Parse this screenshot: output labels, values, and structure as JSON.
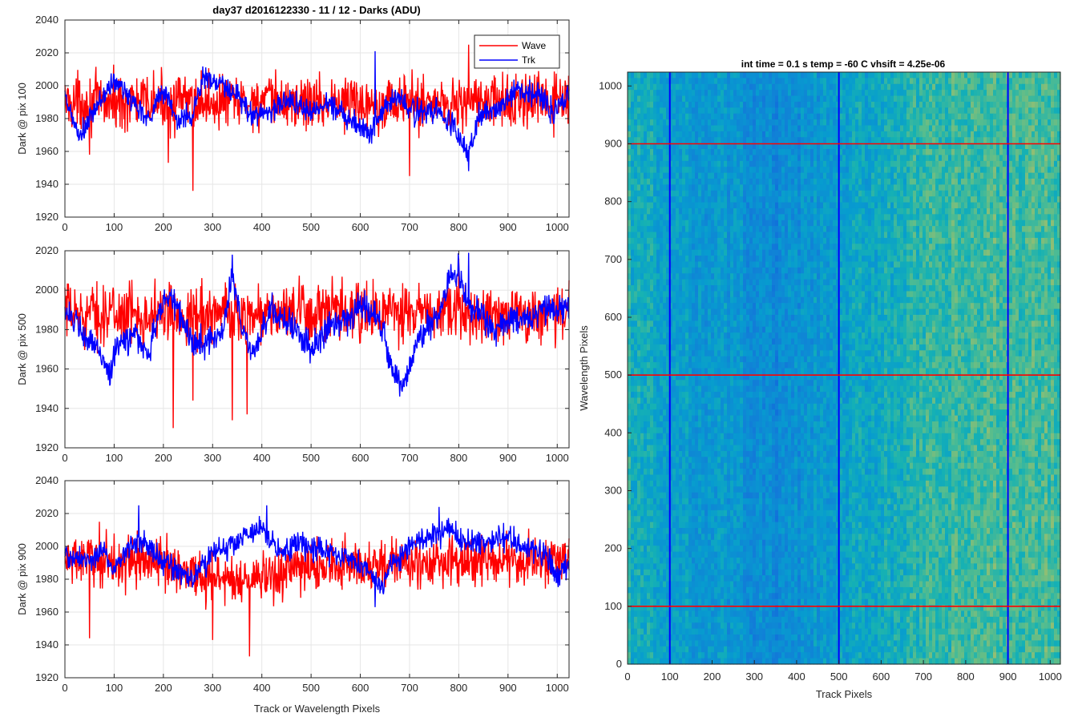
{
  "figure": {
    "suptitle": "day37 d2016122330 - 11 / 12 - Darks (ADU)",
    "right_title": "int time = 0.1 s   temp = -60 C   vhsift = 4.25e-06"
  },
  "colors": {
    "wave": "#ff0000",
    "trk": "#0000ff",
    "grid": "#e6e6e6",
    "axis": "#262626"
  },
  "legend": {
    "items": [
      {
        "label": "Wave",
        "color": "#ff0000"
      },
      {
        "label": "Trk",
        "color": "#0000ff"
      }
    ],
    "location": "top-right"
  },
  "chart_data": [
    {
      "type": "line",
      "ylabel": "Dark @ pix 100",
      "xlabel": "",
      "xlim": [
        0,
        1024
      ],
      "ylim": [
        1920,
        2040
      ],
      "xticks": [
        0,
        100,
        200,
        300,
        400,
        500,
        600,
        700,
        800,
        900,
        1000
      ],
      "yticks": [
        1920,
        1940,
        1960,
        1980,
        2000,
        2020,
        2040
      ],
      "grid": true,
      "series": [
        {
          "name": "Wave",
          "color": "#ff0000",
          "mean": 1990,
          "noise": 11,
          "knots": [
            [
              0,
              1990
            ],
            [
              1024,
              1990
            ]
          ],
          "extremes": [
            [
              260,
              1936
            ],
            [
              210,
              1953
            ],
            [
              700,
              1945
            ],
            [
              820,
              2025
            ],
            [
              50,
              1958
            ]
          ]
        },
        {
          "name": "Trk",
          "color": "#0000ff",
          "mean": 1993,
          "noise": 5,
          "knots": [
            [
              0,
              1992
            ],
            [
              30,
              1968
            ],
            [
              70,
              1990
            ],
            [
              100,
              2003
            ],
            [
              140,
              1990
            ],
            [
              170,
              1980
            ],
            [
              200,
              1998
            ],
            [
              230,
              1978
            ],
            [
              260,
              1983
            ],
            [
              280,
              2005
            ],
            [
              320,
              2000
            ],
            [
              360,
              1990
            ],
            [
              380,
              1982
            ],
            [
              420,
              1985
            ],
            [
              460,
              1992
            ],
            [
              500,
              1983
            ],
            [
              530,
              1990
            ],
            [
              560,
              1985
            ],
            [
              600,
              1975
            ],
            [
              620,
              1970
            ],
            [
              640,
              1986
            ],
            [
              680,
              1993
            ],
            [
              700,
              1985
            ],
            [
              740,
              1983
            ],
            [
              760,
              1985
            ],
            [
              790,
              1975
            ],
            [
              820,
              1958
            ],
            [
              840,
              1980
            ],
            [
              860,
              1985
            ],
            [
              900,
              1990
            ],
            [
              920,
              1998
            ],
            [
              960,
              1995
            ],
            [
              990,
              1985
            ],
            [
              1024,
              1995
            ]
          ],
          "extremes": [
            [
              630,
              2021
            ],
            [
              820,
              1948
            ]
          ]
        }
      ]
    },
    {
      "type": "line",
      "ylabel": "Dark @ pix 500",
      "xlabel": "",
      "xlim": [
        0,
        1024
      ],
      "ylim": [
        1920,
        2020
      ],
      "xticks": [
        0,
        100,
        200,
        300,
        400,
        500,
        600,
        700,
        800,
        900,
        1000
      ],
      "yticks": [
        1920,
        1940,
        1960,
        1980,
        2000,
        2020
      ],
      "grid": true,
      "series": [
        {
          "name": "Wave",
          "color": "#ff0000",
          "mean": 1988,
          "noise": 10,
          "knots": [
            [
              0,
              1988
            ],
            [
              1024,
              1988
            ]
          ],
          "extremes": [
            [
              220,
              1930
            ],
            [
              340,
              1934
            ],
            [
              260,
              1944
            ],
            [
              370,
              1937
            ],
            [
              800,
              2016
            ]
          ]
        },
        {
          "name": "Trk",
          "color": "#0000ff",
          "mean": 1985,
          "noise": 5,
          "knots": [
            [
              0,
              1992
            ],
            [
              40,
              1975
            ],
            [
              70,
              1970
            ],
            [
              90,
              1958
            ],
            [
              110,
              1972
            ],
            [
              140,
              1978
            ],
            [
              170,
              1968
            ],
            [
              200,
              1995
            ],
            [
              210,
              1998
            ],
            [
              230,
              1990
            ],
            [
              260,
              1972
            ],
            [
              300,
              1975
            ],
            [
              320,
              1980
            ],
            [
              340,
              2008
            ],
            [
              360,
              1980
            ],
            [
              380,
              1968
            ],
            [
              420,
              1990
            ],
            [
              450,
              1985
            ],
            [
              480,
              1975
            ],
            [
              500,
              1970
            ],
            [
              530,
              1980
            ],
            [
              560,
              1985
            ],
            [
              600,
              1992
            ],
            [
              640,
              1985
            ],
            [
              660,
              1965
            ],
            [
              680,
              1952
            ],
            [
              700,
              1960
            ],
            [
              720,
              1978
            ],
            [
              760,
              1985
            ],
            [
              780,
              2005
            ],
            [
              800,
              2008
            ],
            [
              820,
              1990
            ],
            [
              850,
              1988
            ],
            [
              870,
              1978
            ],
            [
              900,
              1985
            ],
            [
              940,
              1985
            ],
            [
              980,
              1990
            ],
            [
              1024,
              1990
            ]
          ],
          "extremes": [
            [
              340,
              2018
            ],
            [
              680,
              1946
            ],
            [
              820,
              2019
            ]
          ]
        }
      ]
    },
    {
      "type": "line",
      "ylabel": "Dark @ pix 900",
      "xlabel": "Track or Wavelength Pixels",
      "xlim": [
        0,
        1024
      ],
      "ylim": [
        1920,
        2040
      ],
      "xticks": [
        0,
        100,
        200,
        300,
        400,
        500,
        600,
        700,
        800,
        900,
        1000
      ],
      "yticks": [
        1920,
        1940,
        1960,
        1980,
        2000,
        2020,
        2040
      ],
      "grid": true,
      "series": [
        {
          "name": "Wave",
          "color": "#ff0000",
          "mean": 1990,
          "noise": 10,
          "knots": [
            [
              0,
              1992
            ],
            [
              200,
              1990
            ],
            [
              300,
              1980
            ],
            [
              400,
              1980
            ],
            [
              500,
              1988
            ],
            [
              1024,
              1992
            ]
          ],
          "extremes": [
            [
              50,
              1944
            ],
            [
              375,
              1933
            ],
            [
              300,
              1943
            ],
            [
              70,
              2015
            ]
          ]
        },
        {
          "name": "Trk",
          "color": "#0000ff",
          "mean": 1995,
          "noise": 5,
          "knots": [
            [
              0,
              1995
            ],
            [
              40,
              1990
            ],
            [
              80,
              1998
            ],
            [
              100,
              1985
            ],
            [
              130,
              2000
            ],
            [
              160,
              2005
            ],
            [
              200,
              1990
            ],
            [
              230,
              1985
            ],
            [
              260,
              1980
            ],
            [
              300,
              1995
            ],
            [
              360,
              2005
            ],
            [
              400,
              2010
            ],
            [
              430,
              2000
            ],
            [
              450,
              1995
            ],
            [
              470,
              2002
            ],
            [
              500,
              2000
            ],
            [
              560,
              1995
            ],
            [
              600,
              1990
            ],
            [
              620,
              1985
            ],
            [
              640,
              1975
            ],
            [
              660,
              1985
            ],
            [
              700,
              2000
            ],
            [
              740,
              2005
            ],
            [
              780,
              2010
            ],
            [
              820,
              2002
            ],
            [
              900,
              2005
            ],
            [
              940,
              2000
            ],
            [
              980,
              1995
            ],
            [
              1000,
              1980
            ],
            [
              1024,
              1992
            ]
          ],
          "extremes": [
            [
              410,
              2025
            ],
            [
              760,
              2024
            ],
            [
              150,
              2025
            ],
            [
              630,
              1963
            ]
          ]
        }
      ]
    },
    {
      "type": "heatmap",
      "title": "int time = 0.1 s   temp = -60 C   vhsift = 4.25e-06",
      "xlabel": "Track Pixels",
      "ylabel": "Wavelength Pixels",
      "xlim": [
        0,
        1024
      ],
      "ylim": [
        0,
        1024
      ],
      "xticks": [
        0,
        100,
        200,
        300,
        400,
        500,
        600,
        700,
        800,
        900,
        1000
      ],
      "yticks": [
        0,
        100,
        200,
        300,
        400,
        500,
        600,
        700,
        800,
        900,
        1000
      ],
      "colormap": "parula",
      "column_profile": [
        [
          0,
          0.55
        ],
        [
          100,
          0.45
        ],
        [
          250,
          0.42
        ],
        [
          350,
          0.35
        ],
        [
          500,
          0.45
        ],
        [
          650,
          0.55
        ],
        [
          800,
          0.6
        ],
        [
          1024,
          0.62
        ]
      ],
      "overlay_lines": [
        {
          "orientation": "vertical",
          "value": 100,
          "color": "#0000ff"
        },
        {
          "orientation": "vertical",
          "value": 500,
          "color": "#0000ff"
        },
        {
          "orientation": "vertical",
          "value": 900,
          "color": "#0000ff"
        },
        {
          "orientation": "horizontal",
          "value": 100,
          "color": "#ff0000"
        },
        {
          "orientation": "horizontal",
          "value": 500,
          "color": "#ff0000"
        },
        {
          "orientation": "horizontal",
          "value": 900,
          "color": "#ff0000"
        }
      ]
    }
  ]
}
